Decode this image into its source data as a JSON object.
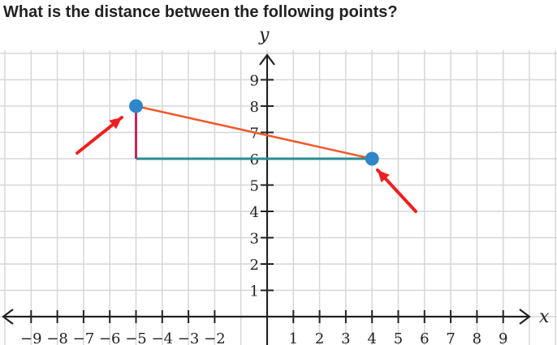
{
  "question": {
    "text": "What is the distance between the following points?"
  },
  "graph": {
    "x_axis_label": "x",
    "y_axis_label": "y",
    "x_tick_labels": [
      "−9",
      "−8",
      "−7",
      "−6",
      "−5",
      "−4",
      "−3",
      "−2",
      "1",
      "2",
      "3",
      "4",
      "5",
      "6",
      "7",
      "8",
      "9"
    ],
    "x_tick_values": [
      -9,
      -8,
      -7,
      -6,
      -5,
      -4,
      -3,
      -2,
      1,
      2,
      3,
      4,
      5,
      6,
      7,
      8,
      9
    ],
    "y_tick_labels": [
      "1",
      "2",
      "3",
      "4",
      "5",
      "6",
      "7",
      "8",
      "9"
    ],
    "y_tick_values": [
      1,
      2,
      3,
      4,
      5,
      6,
      7,
      8,
      9
    ],
    "point_a": [
      -5,
      8
    ],
    "point_b": [
      4,
      6
    ],
    "right_angle_corner": [
      -5,
      6
    ],
    "colors": {
      "hypotenuse": "#ee5a2c",
      "vertical_leg": "#c4285a",
      "horizontal_leg": "#2a8c93",
      "point": "#2f86c8",
      "arrow": "#ee1f1f",
      "grid": "#d7d7d7",
      "axis": "#222222"
    }
  }
}
